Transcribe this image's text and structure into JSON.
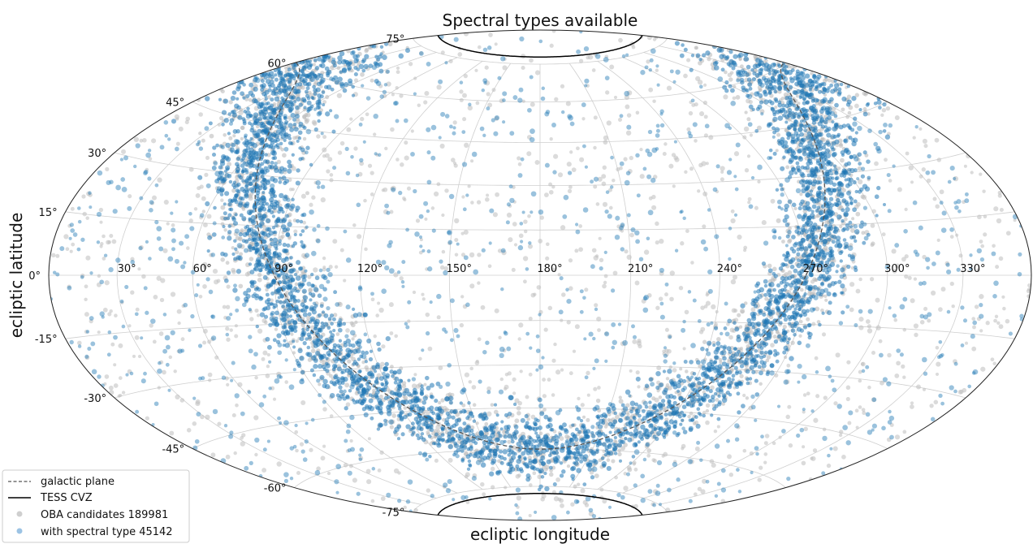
{
  "chart_data": {
    "type": "scatter",
    "projection": "hammer (all-sky)",
    "title": "Spectral types available",
    "xlabel": "ecliptic longitude",
    "ylabel": "ecliptic latitude",
    "xlim": [
      0,
      360
    ],
    "ylim": [
      -90,
      90
    ],
    "grid": true,
    "longitude_ticks": [
      "30°",
      "60°",
      "90°",
      "120°",
      "150°",
      "180°",
      "210°",
      "240°",
      "270°",
      "300°",
      "330°"
    ],
    "longitude_tick_values": [
      30,
      60,
      90,
      120,
      150,
      180,
      210,
      240,
      270,
      300,
      330
    ],
    "latitude_ticks": [
      "75°",
      "60°",
      "45°",
      "30°",
      "15°",
      "0°",
      "-15°",
      "-30°",
      "-45°",
      "-60°",
      "-75°"
    ],
    "latitude_tick_values": [
      75,
      60,
      45,
      30,
      15,
      0,
      -15,
      -30,
      -45,
      -60,
      -75
    ],
    "series": [
      {
        "name": "OBA candidates 189981",
        "color": "#bdbdbd",
        "marker": "circle",
        "description_shape": "all-sky distribution concentrated along the galactic plane"
      },
      {
        "name": "with spectral type 45142",
        "color": "#1f77b4",
        "marker": "circle",
        "description_shape": "all-sky distribution concentrated along the galactic plane"
      }
    ],
    "lines": [
      {
        "name": "galactic plane",
        "style": "dashed",
        "color": "#555555"
      },
      {
        "name": "TESS CVZ",
        "style": "solid",
        "color": "#000000",
        "center_lat": [
          90,
          -90
        ],
        "radius_deg": 12
      }
    ],
    "legend": {
      "placement": "bottom-left",
      "entries": [
        {
          "label": "galactic plane",
          "kind": "dashed-line",
          "color": "#555555"
        },
        {
          "label": "TESS CVZ",
          "kind": "solid-line",
          "color": "#000000"
        },
        {
          "label": "OBA candidates 189981",
          "kind": "dot",
          "color": "#bdbdbd"
        },
        {
          "label": "with spectral type 45142",
          "kind": "dot",
          "color": "#9cc3e4"
        }
      ]
    }
  }
}
